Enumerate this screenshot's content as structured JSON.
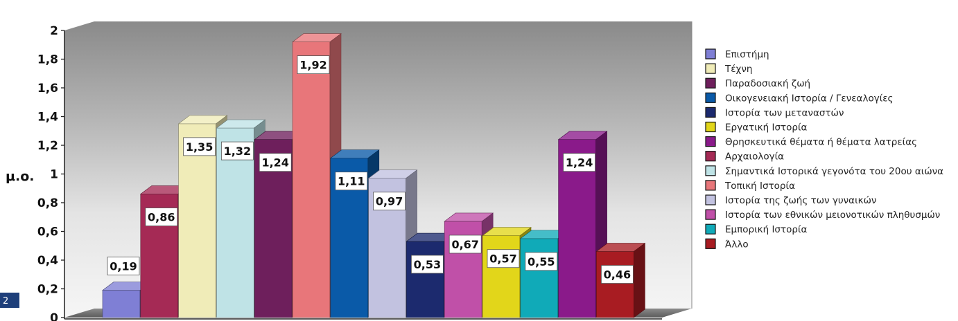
{
  "page_number": "2",
  "chart_data": {
    "type": "bar",
    "title": "",
    "xlabel": "",
    "ylabel": "μ.ο.",
    "ylim": [
      0,
      2
    ],
    "yticks": [
      "0",
      "0,2",
      "0,4",
      "0,6",
      "0,8",
      "1",
      "1,2",
      "1,4",
      "1,6",
      "1,8",
      "2"
    ],
    "legend_position": "right",
    "series": [
      {
        "name": "Επιστήμη",
        "value": 0.19,
        "label": "0,19",
        "color": "#7f7fd5"
      },
      {
        "name": "Αρχαιολογία",
        "value": 0.86,
        "label": "0,86",
        "color": "#a52a55"
      },
      {
        "name": "Τέχνη",
        "value": 1.35,
        "label": "1,35",
        "color": "#f0ecb8"
      },
      {
        "name": "Σημαντικά Ιστορικά γεγονότα του 20ου αιώνα",
        "value": 1.32,
        "label": "1,32",
        "color": "#bfe3e6"
      },
      {
        "name": "Παραδοσιακή ζωή",
        "value": 1.24,
        "label": "1,24",
        "color": "#6e1f5c"
      },
      {
        "name": "Τοπική Ιστορία",
        "value": 1.92,
        "label": "1,92",
        "color": "#e8767a"
      },
      {
        "name": "Οικογενειακή Ιστορία / Γενεαλογίες",
        "value": 1.11,
        "label": "1,11",
        "color": "#0a5aa8"
      },
      {
        "name": "Ιστορία της ζωής των γυναικών",
        "value": 0.97,
        "label": "0,97",
        "color": "#c2c2e0"
      },
      {
        "name": "Ιστορία των μεταναστών",
        "value": 0.53,
        "label": "0,53",
        "color": "#1c2a6e"
      },
      {
        "name": "Ιστορία των εθνικών μειονοτικών πληθυσμών",
        "value": 0.67,
        "label": "0,67",
        "color": "#c050a8"
      },
      {
        "name": "Εργατική Ιστορία",
        "value": 0.57,
        "label": "0,57",
        "color": "#e2d61a"
      },
      {
        "name": "Εμπορική Ιστορία",
        "value": 0.55,
        "label": "0,55",
        "color": "#10aab8"
      },
      {
        "name": "Θρησκευτικά θέματα ή θέματα λατρείας",
        "value": 1.24,
        "label": "1,24",
        "color": "#8a1a8a"
      },
      {
        "name": "Άλλο",
        "value": 0.46,
        "label": "0,46",
        "color": "#a81c22"
      }
    ],
    "legend_order": [
      "Επιστήμη",
      "Τέχνη",
      "Παραδοσιακή ζωή",
      "Οικογενειακή Ιστορία / Γενεαλογίες",
      "Ιστορία των μεταναστών",
      "Εργατική Ιστορία",
      "Θρησκευτικά θέματα ή θέματα λατρείας",
      "Αρχαιολογία",
      "Σημαντικά Ιστορικά γεγονότα του 20ου αιώνα",
      "Τοπική Ιστορία",
      "Ιστορία της ζωής των γυναικών",
      "Ιστορία των εθνικών μειονοτικών πληθυσμών",
      "Εμπορική Ιστορία",
      "Άλλο"
    ]
  }
}
